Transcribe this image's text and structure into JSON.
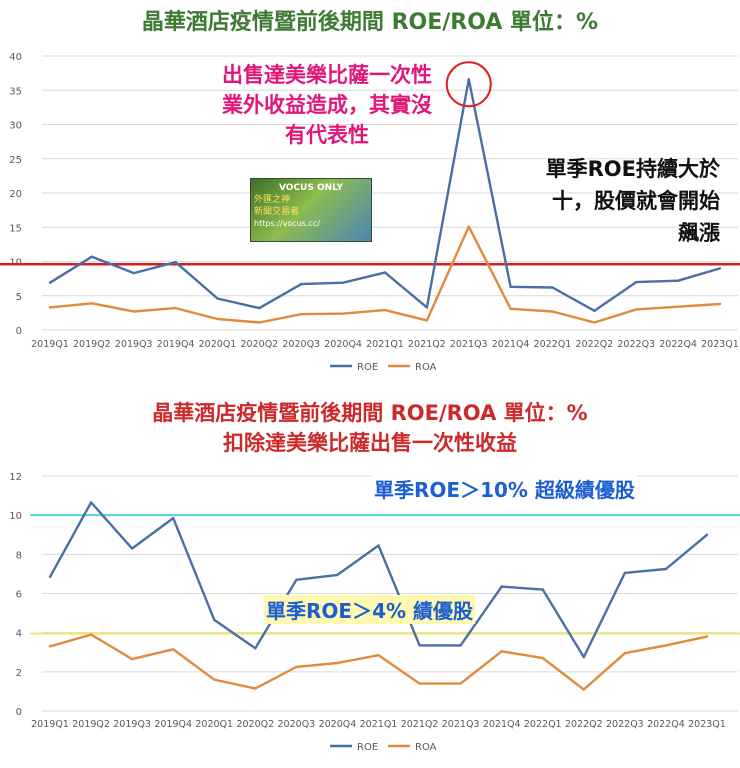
{
  "chart1_title": "晶華酒店疫情暨前後期間 ROE/ROA 單位：%",
  "chart2_title_line1": "晶華酒店疫情暨前後期間 ROE/ROA 單位：%",
  "chart2_title_line2": "扣除達美樂比薩出售一次性收益",
  "annotation_pink": "出售達美樂比薩一次性業外收益造成，其實沒有代表性",
  "annotation_black": "單季ROE持續大於十，股價就會開始飆漲",
  "label_cyan": "單季ROE＞10% 超級績優股",
  "label_gold": "單季ROE＞4% 績優股",
  "badge": {
    "line1": "VOCUS ONLY",
    "line2": "外匯之神",
    "line3": "新聞交易者",
    "line4": "https://vocus.cc/"
  },
  "colors": {
    "roe": "#4a6fa5",
    "roa": "#e08a3c",
    "red_line": "#d31f1f",
    "cyan_line": "#4fd3dd",
    "yellow_line": "#f2e56b"
  },
  "chart_data": [
    {
      "type": "line",
      "categories": [
        "2019Q1",
        "2019Q2",
        "2019Q3",
        "2019Q4",
        "2020Q1",
        "2020Q2",
        "2020Q3",
        "2020Q4",
        "2021Q1",
        "2021Q2",
        "2021Q3",
        "2021Q4",
        "2022Q1",
        "2022Q2",
        "2022Q3",
        "2022Q4",
        "2023Q1"
      ],
      "ylim": [
        0,
        40
      ],
      "yticks": [
        "0",
        "5",
        "10",
        "15",
        "20",
        "25",
        "30",
        "35",
        "40"
      ],
      "reference_line": 9.6,
      "series": [
        {
          "name": "ROE",
          "values": [
            6.9,
            10.7,
            8.3,
            9.9,
            4.6,
            3.2,
            6.7,
            6.9,
            8.4,
            3.3,
            36.6,
            6.3,
            6.2,
            2.8,
            7.0,
            7.2,
            9.0
          ]
        },
        {
          "name": "ROA",
          "values": [
            3.3,
            3.9,
            2.7,
            3.2,
            1.6,
            1.1,
            2.3,
            2.4,
            2.9,
            1.4,
            15.1,
            3.1,
            2.7,
            1.1,
            3.0,
            3.4,
            3.8
          ]
        }
      ]
    },
    {
      "type": "line",
      "categories": [
        "2019Q1",
        "2019Q2",
        "2019Q3",
        "2019Q4",
        "2020Q1",
        "2020Q2",
        "2020Q3",
        "2020Q4",
        "2021Q1",
        "2021Q2",
        "2021Q3",
        "2021Q4",
        "2022Q1",
        "2022Q2",
        "2022Q3",
        "2022Q4",
        "2023Q1"
      ],
      "ylim": [
        0,
        12
      ],
      "yticks": [
        "0",
        "2",
        "4",
        "6",
        "8",
        "10",
        "12"
      ],
      "reference_lines": [
        10,
        3.95
      ],
      "series": [
        {
          "name": "ROE",
          "values": [
            6.85,
            10.65,
            8.3,
            9.85,
            4.65,
            3.2,
            6.7,
            6.95,
            8.45,
            3.35,
            3.35,
            6.35,
            6.2,
            2.75,
            7.05,
            7.25,
            9.0
          ]
        },
        {
          "name": "ROA",
          "values": [
            3.3,
            3.9,
            2.65,
            3.15,
            1.6,
            1.15,
            2.25,
            2.45,
            2.85,
            1.4,
            1.4,
            3.05,
            2.7,
            1.1,
            2.95,
            3.35,
            3.8
          ]
        }
      ]
    }
  ]
}
